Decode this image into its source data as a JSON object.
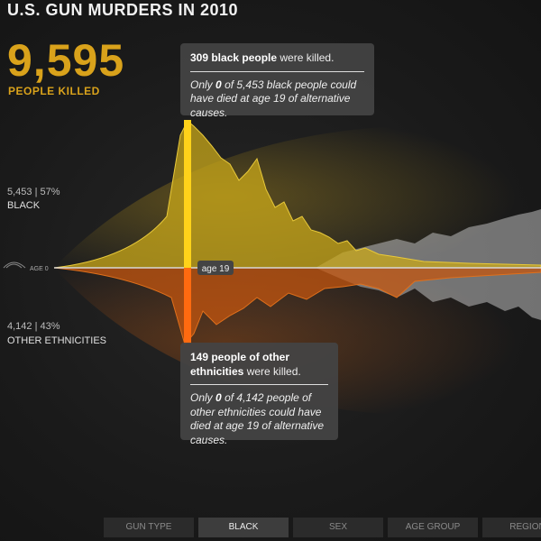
{
  "header": {
    "title": "U.S. GUN MURDERS IN 2010"
  },
  "total": {
    "value": "9,595",
    "label": "PEOPLE KILLED"
  },
  "groups": [
    {
      "stats": "5,453 | 57%",
      "label": "BLACK"
    },
    {
      "stats": "4,142 | 43%",
      "label": "OTHER ETHNICITIES"
    }
  ],
  "axis": {
    "start": "AGE 0",
    "marker": "age 19"
  },
  "tooltips": [
    {
      "headline_bold": "309 black people",
      "headline_rest": "were killed.",
      "note_parts": [
        "Only",
        "0",
        "of 5,453 black people could have died at age 19 of alternative causes."
      ]
    },
    {
      "headline_bold": "149 people of other ethnicities",
      "headline_rest": "were killed.",
      "note_parts": [
        "Only",
        "0",
        "of 4,142 people of other ethnicities could have died at age 19 of alternative causes."
      ]
    }
  ],
  "tabs": [
    "GUN TYPE",
    "BLACK",
    "SEX",
    "AGE GROUP",
    "REGION"
  ]
}
